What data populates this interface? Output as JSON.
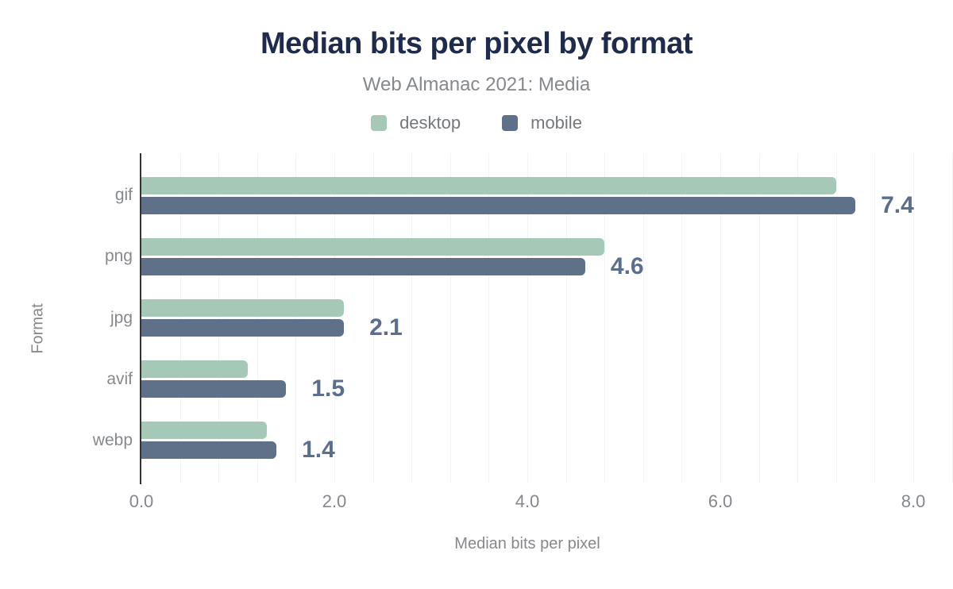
{
  "chart_data": {
    "type": "bar",
    "orientation": "horizontal",
    "title": "Median bits per pixel by format",
    "subtitle": "Web Almanac 2021: Media",
    "categories": [
      "gif",
      "png",
      "jpg",
      "avif",
      "webp"
    ],
    "series": [
      {
        "name": "desktop",
        "color": "#a6c9b7",
        "values": [
          7.2,
          4.8,
          2.1,
          1.1,
          1.3
        ]
      },
      {
        "name": "mobile",
        "color": "#5f7089",
        "values": [
          7.4,
          4.6,
          2.1,
          1.5,
          1.4
        ]
      }
    ],
    "bar_value_labels": [
      "7.4",
      "4.6",
      "2.1",
      "1.5",
      "1.4"
    ],
    "value_labels_annotate_series": "mobile",
    "xlabel": "Median bits per pixel",
    "ylabel": "Format",
    "xlim": [
      0,
      8
    ],
    "x_tick_labels": [
      "0.0",
      "2.0",
      "4.0",
      "6.0",
      "8.0"
    ],
    "minor_gridline_step": 0.4,
    "grid": "vertical-minor",
    "legend_position": "top"
  },
  "colors": {
    "title": "#1e2b4d",
    "axis_text": "#85888c",
    "legend_text": "#74787d",
    "value_label": "#5c6e8e",
    "axis_line": "#333333",
    "gridline": "#f2f3f6",
    "desktop_bar": "#a6c9b7",
    "mobile_bar": "#5f7089",
    "background": "#ffffff"
  }
}
